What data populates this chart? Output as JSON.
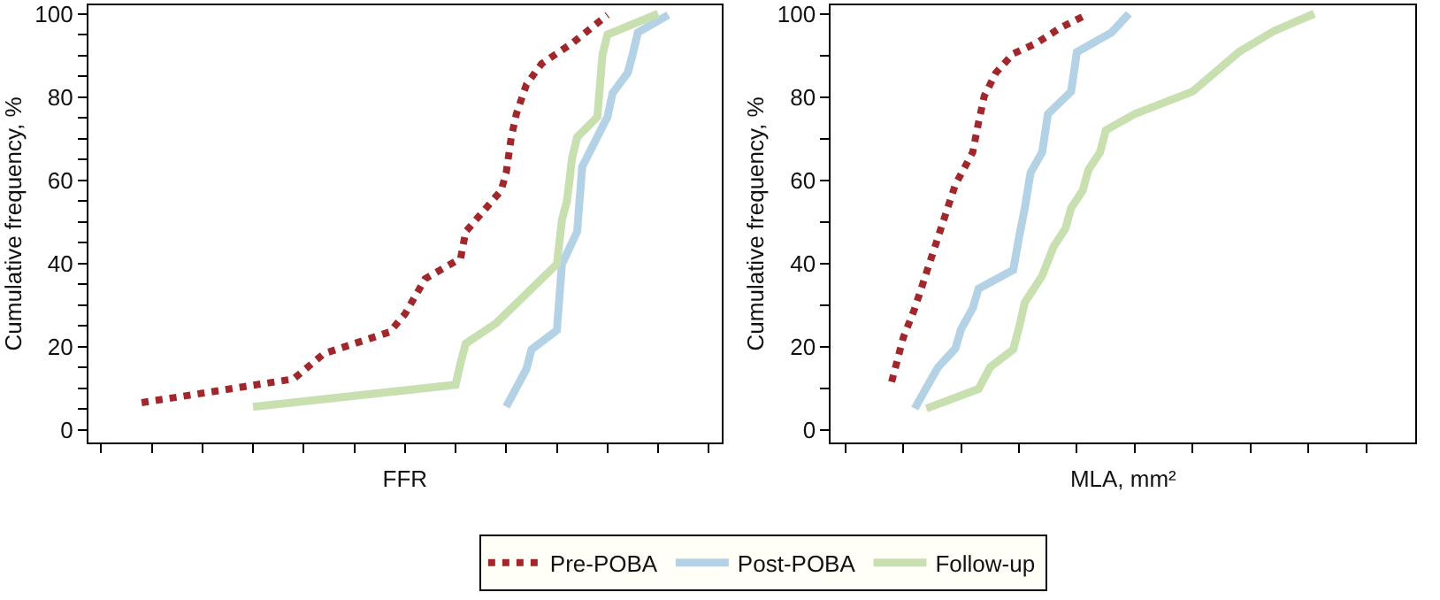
{
  "chart_data": [
    {
      "type": "line",
      "xlabel": "FFR",
      "ylabel": "Cumulative frequency, %",
      "legend": "bottom",
      "marker": "none",
      "categories": [
        null,
        null,
        null,
        null,
        null,
        null,
        null,
        null,
        null,
        null,
        null,
        null,
        null,
        null,
        null,
        null,
        null,
        null,
        null,
        null,
        null,
        null,
        null,
        null,
        null,
        null,
        null,
        null,
        null,
        null,
        null,
        null,
        null,
        null,
        null,
        null,
        null,
        null,
        null,
        null,
        null,
        null,
        null,
        null,
        null,
        null,
        null,
        null,
        null,
        null,
        null,
        null,
        null,
        null,
        null,
        null,
        null,
        null,
        null,
        null,
        null,
        null,
        null,
        null,
        null,
        null,
        null,
        null,
        null,
        null,
        null,
        null,
        null,
        null,
        null,
        null,
        null,
        null,
        null,
        null,
        null,
        null,
        null,
        null,
        null,
        null,
        null,
        null,
        null,
        null,
        null,
        null,
        null,
        null,
        null,
        null,
        null,
        null,
        null,
        null,
        null,
        null,
        null,
        null,
        null,
        null,
        null,
        null,
        null,
        null,
        null,
        null,
        null,
        null,
        null,
        null,
        null,
        null,
        null,
        null,
        null,
        null,
        null,
        null,
        null
      ],
      "ylim": [
        -3,
        102
      ],
      "yticks": [
        0,
        {
          "value": 5,
          "label": null
        },
        {
          "value": 10,
          "label": null
        },
        {
          "value": 15,
          "label": null
        },
        20,
        {
          "value": 25,
          "label": null
        },
        {
          "value": 30,
          "label": null
        },
        {
          "value": 35,
          "label": null
        },
        40,
        {
          "value": 45,
          "label": null
        },
        {
          "value": 50,
          "label": null
        },
        {
          "value": 55,
          "label": null
        },
        60,
        {
          "value": 65,
          "label": null
        },
        {
          "value": 70,
          "label": null
        },
        {
          "value": 75,
          "label": null
        },
        80,
        {
          "value": 85,
          "label": null
        },
        {
          "value": 90,
          "label": null
        },
        {
          "value": 95,
          "label": null
        },
        100
      ],
      "series": [
        {
          "name": "Pre-POBA",
          "color": "#a0282d",
          "line_style": "dotted",
          "values": [
            null,
            null,
            null,
            null,
            null,
            null,
            null,
            null,
            null,
            null,
            6.5,
            null,
            null,
            null,
            null,
            null,
            null,
            null,
            null,
            null,
            null,
            null,
            null,
            null,
            null,
            null,
            null,
            null,
            null,
            null,
            null,
            null,
            null,
            null,
            null,
            null,
            null,
            null,
            null,
            null,
            12.2,
            null,
            null,
            null,
            null,
            null,
            18.3,
            null,
            null,
            null,
            null,
            null,
            null,
            null,
            null,
            null,
            null,
            null,
            null,
            23.5,
            null,
            null,
            27.8,
            null,
            null,
            null,
            36.3,
            null,
            null,
            null,
            null,
            null,
            null,
            41.2,
            47.6,
            null,
            null,
            null,
            null,
            null,
            null,
            57.5,
            61.8,
            70.3,
            75.9,
            null,
            83.0,
            null,
            null,
            88.0,
            null,
            null,
            null,
            null,
            null,
            92.9,
            null,
            null,
            null,
            null,
            null,
            null,
            99.7,
            null,
            null,
            null,
            null,
            null,
            null,
            null,
            null,
            null,
            null,
            null,
            null,
            null,
            null,
            null,
            null,
            null,
            null,
            null,
            null,
            null,
            null
          ]
        },
        {
          "name": "Post-POBA",
          "color": "#b4d2e6",
          "line_style": "solid",
          "values": [
            null,
            null,
            null,
            null,
            null,
            null,
            null,
            null,
            null,
            null,
            null,
            null,
            null,
            null,
            null,
            null,
            null,
            null,
            null,
            null,
            null,
            null,
            null,
            null,
            null,
            null,
            null,
            null,
            null,
            null,
            null,
            null,
            null,
            null,
            null,
            null,
            null,
            null,
            null,
            null,
            null,
            null,
            null,
            null,
            null,
            null,
            null,
            null,
            null,
            null,
            null,
            null,
            null,
            null,
            null,
            null,
            null,
            null,
            null,
            null,
            null,
            null,
            null,
            null,
            null,
            null,
            null,
            null,
            null,
            null,
            null,
            null,
            null,
            null,
            null,
            null,
            null,
            null,
            null,
            null,
            null,
            null,
            5.5,
            null,
            null,
            null,
            14.6,
            19.3,
            null,
            null,
            null,
            null,
            23.9,
            39.8,
            null,
            null,
            47.6,
            63.2,
            null,
            null,
            null,
            null,
            75.2,
            80.9,
            null,
            null,
            85.8,
            90.4,
            95.5,
            null,
            null,
            null,
            null,
            null,
            99.7,
            null,
            null,
            null,
            null,
            null,
            null,
            null,
            null,
            null,
            null
          ]
        },
        {
          "name": "Follow-up",
          "color": "#c8e0b0",
          "line_style": "solid",
          "values": [
            null,
            null,
            null,
            null,
            null,
            null,
            null,
            null,
            null,
            null,
            null,
            null,
            null,
            null,
            null,
            null,
            null,
            null,
            null,
            null,
            null,
            null,
            null,
            null,
            null,
            null,
            null,
            null,
            null,
            null,
            null,
            null,
            5.5,
            null,
            null,
            null,
            null,
            null,
            null,
            null,
            null,
            null,
            null,
            null,
            null,
            null,
            null,
            null,
            null,
            null,
            null,
            null,
            null,
            null,
            null,
            null,
            null,
            null,
            null,
            null,
            null,
            null,
            null,
            null,
            null,
            null,
            null,
            null,
            null,
            null,
            null,
            null,
            10.8,
            16.1,
            20.7,
            null,
            null,
            null,
            null,
            null,
            25.6,
            null,
            null,
            null,
            null,
            null,
            null,
            null,
            null,
            null,
            null,
            null,
            39.8,
            50.4,
            55.0,
            65.3,
            70.3,
            null,
            null,
            null,
            75.2,
            90.1,
            95.0,
            null,
            null,
            null,
            null,
            null,
            null,
            null,
            null,
            null,
            100,
            null,
            null,
            null,
            null,
            null,
            null,
            null,
            null,
            null,
            null,
            null,
            null
          ]
        }
      ]
    },
    {
      "type": "line",
      "xlabel": "MLA, mm²",
      "ylabel": "Cumulative frequency, %",
      "marker": "none",
      "categories": [
        null,
        null,
        null,
        null,
        null,
        null,
        null,
        null,
        null,
        null,
        null,
        null,
        null,
        null,
        null,
        null,
        null,
        null,
        null,
        null,
        null,
        null,
        null,
        null,
        null,
        null,
        null,
        null,
        null,
        null,
        null,
        null,
        null,
        null,
        null,
        null,
        null,
        null,
        null,
        null,
        null,
        null,
        null,
        null,
        null,
        null,
        null,
        null,
        null,
        null,
        null,
        null,
        null,
        null,
        null,
        null,
        null,
        null,
        null,
        null,
        null,
        null,
        null,
        null,
        null,
        null,
        null,
        null,
        null,
        null,
        null,
        null,
        null,
        null,
        null,
        null,
        null,
        null,
        null,
        null,
        null,
        null,
        null,
        null,
        null,
        null,
        null,
        null,
        null,
        null,
        null,
        null,
        null,
        null,
        null,
        null,
        null,
        null,
        null,
        null,
        null
      ],
      "ylim": [
        -3,
        102
      ],
      "yticks": [
        0,
        {
          "value": 10,
          "label": null
        },
        20,
        {
          "value": 30,
          "label": null
        },
        40,
        {
          "value": 50,
          "label": null
        },
        60,
        {
          "value": 70,
          "label": null
        },
        80,
        {
          "value": 90,
          "label": null
        },
        100
      ],
      "series": [
        {
          "color": "#a0282d",
          "line_style": "dotted",
          "values": [
            null,
            null,
            null,
            null,
            null,
            null,
            null,
            null,
            null,
            null,
            11.5,
            null,
            22.1,
            null,
            29.2,
            null,
            37.7,
            null,
            46.2,
            null,
            54.7,
            58.9,
            null,
            null,
            66.7,
            73.8,
            80.2,
            null,
            85.8,
            null,
            null,
            90.4,
            null,
            null,
            null,
            92.9,
            null,
            null,
            null,
            96.5,
            null,
            null,
            null,
            null,
            100,
            null,
            null,
            null,
            null,
            null,
            null,
            null,
            null,
            null,
            null,
            null,
            null,
            null,
            null,
            null,
            null,
            null,
            null,
            null,
            null,
            null,
            null,
            null,
            null,
            null,
            null,
            null,
            null,
            null,
            null,
            null,
            null,
            null,
            null,
            null,
            null,
            null,
            null,
            null,
            null,
            null,
            null,
            null,
            null,
            null,
            null,
            null,
            null,
            null,
            null,
            null,
            null,
            null,
            null,
            null,
            null
          ]
        },
        {
          "color": "#b4d2e6",
          "line_style": "solid",
          "values": [
            null,
            null,
            null,
            null,
            null,
            null,
            null,
            null,
            null,
            null,
            null,
            null,
            null,
            null,
            5.1,
            null,
            10.1,
            null,
            15.0,
            null,
            null,
            19.5,
            24.2,
            null,
            29.2,
            33.9,
            null,
            null,
            null,
            null,
            null,
            38.4,
            46.2,
            53.3,
            61.8,
            null,
            66.7,
            75.9,
            null,
            null,
            null,
            81.3,
            90.8,
            null,
            null,
            null,
            null,
            null,
            95.5,
            null,
            null,
            100,
            null,
            null,
            null,
            null,
            null,
            null,
            null,
            null,
            null,
            null,
            null,
            null,
            null,
            null,
            null,
            null,
            null,
            null,
            null,
            null,
            null,
            null,
            null,
            null,
            null,
            null,
            null,
            null,
            null,
            null,
            null,
            null,
            null,
            null,
            null,
            null,
            null,
            null,
            null,
            null,
            null,
            null,
            null,
            null,
            null,
            null,
            null,
            null,
            null
          ]
        },
        {
          "color": "#c8e0b0",
          "line_style": "solid",
          "values": [
            null,
            null,
            null,
            null,
            null,
            null,
            null,
            null,
            null,
            null,
            null,
            null,
            null,
            null,
            null,
            null,
            5.1,
            null,
            null,
            null,
            null,
            null,
            null,
            null,
            null,
            9.8,
            null,
            15.0,
            null,
            null,
            null,
            19.3,
            24.5,
            30.6,
            null,
            null,
            37.0,
            null,
            44.1,
            null,
            48.3,
            53.3,
            null,
            57.5,
            62.5,
            null,
            66.7,
            72.0,
            null,
            null,
            null,
            null,
            75.9,
            null,
            null,
            null,
            null,
            null,
            null,
            null,
            null,
            null,
            81.3,
            null,
            null,
            null,
            null,
            null,
            null,
            null,
            90.8,
            null,
            null,
            null,
            null,
            null,
            95.8,
            null,
            null,
            null,
            null,
            null,
            null,
            100,
            null,
            null,
            null,
            null,
            null,
            null,
            null,
            null,
            null,
            null,
            null,
            null,
            null,
            null,
            null,
            null,
            null
          ]
        }
      ]
    }
  ]
}
